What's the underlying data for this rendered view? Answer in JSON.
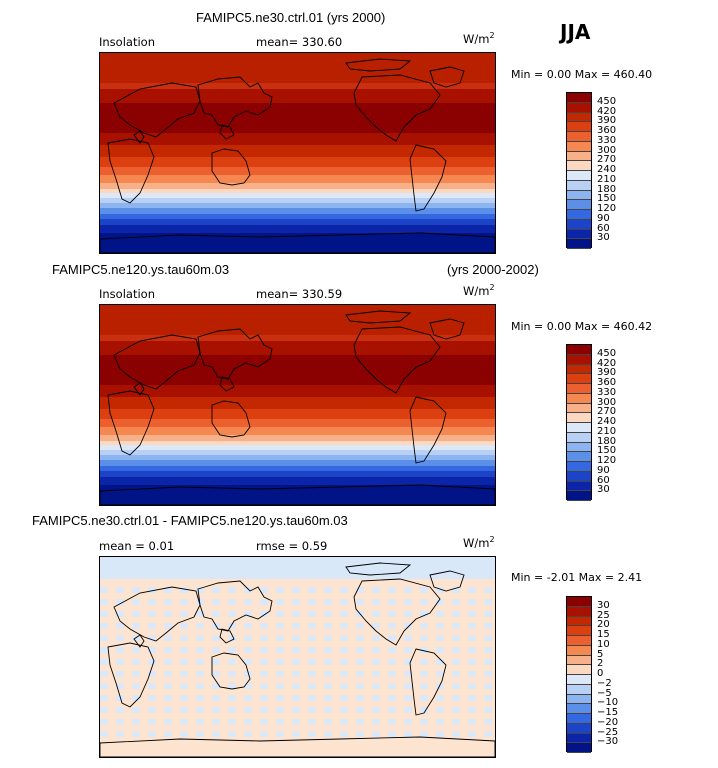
{
  "season": "JJA",
  "panels": [
    {
      "title_left": "FAMIPC5.ne30.ctrl.01 (yrs 2000)",
      "title_right": "",
      "field": "Insolation",
      "mean": "mean= 330.60",
      "rmse": "",
      "units": "W/m",
      "units_exp": "2",
      "minmax": "Min =    0.00 Max = 460.40",
      "type": "absolute"
    },
    {
      "title_left": "FAMIPC5.ne120.ys.tau60m.03",
      "title_right": "(yrs 2000-2002)",
      "field": "Insolation",
      "mean": "mean= 330.59",
      "rmse": "",
      "units": "W/m",
      "units_exp": "2",
      "minmax": "Min =    0.00 Max = 460.42",
      "type": "absolute"
    },
    {
      "title_left": "FAMIPC5.ne30.ctrl.01 - FAMIPC5.ne120.ys.tau60m.03",
      "title_right": "",
      "field": "mean =    0.01",
      "mean": "rmse =    0.59",
      "rmse": "",
      "units": "W/m",
      "units_exp": "2",
      "minmax": "Min =  -2.01 Max =    2.41",
      "type": "difference"
    }
  ],
  "colorbar_abs": {
    "labels": [
      "450",
      "420",
      "390",
      "360",
      "330",
      "300",
      "270",
      "240",
      "210",
      "180",
      "150",
      "120",
      "90",
      "60",
      "30"
    ],
    "colors": [
      "#8b0000",
      "#a81000",
      "#c42800",
      "#dc4010",
      "#ec6030",
      "#f48850",
      "#f8b088",
      "#fcd8c0",
      "#dce8f8",
      "#b8d0f4",
      "#8cb4f0",
      "#5c90e8",
      "#3468e0",
      "#1c44c8",
      "#0c24a8",
      "#001488"
    ]
  },
  "colorbar_diff": {
    "labels": [
      "30",
      "25",
      "20",
      "15",
      "10",
      "5",
      "2",
      "0",
      "−2",
      "−5",
      "−10",
      "−15",
      "−20",
      "−25",
      "−30"
    ],
    "colors": [
      "#8b0000",
      "#a81000",
      "#c42800",
      "#dc4010",
      "#ec6030",
      "#f48850",
      "#f8b088",
      "#fcd8c0",
      "#dce8f8",
      "#b8d0f4",
      "#8cb4f0",
      "#5c90e8",
      "#3468e0",
      "#1c44c8",
      "#0c24a8",
      "#001488"
    ]
  }
}
